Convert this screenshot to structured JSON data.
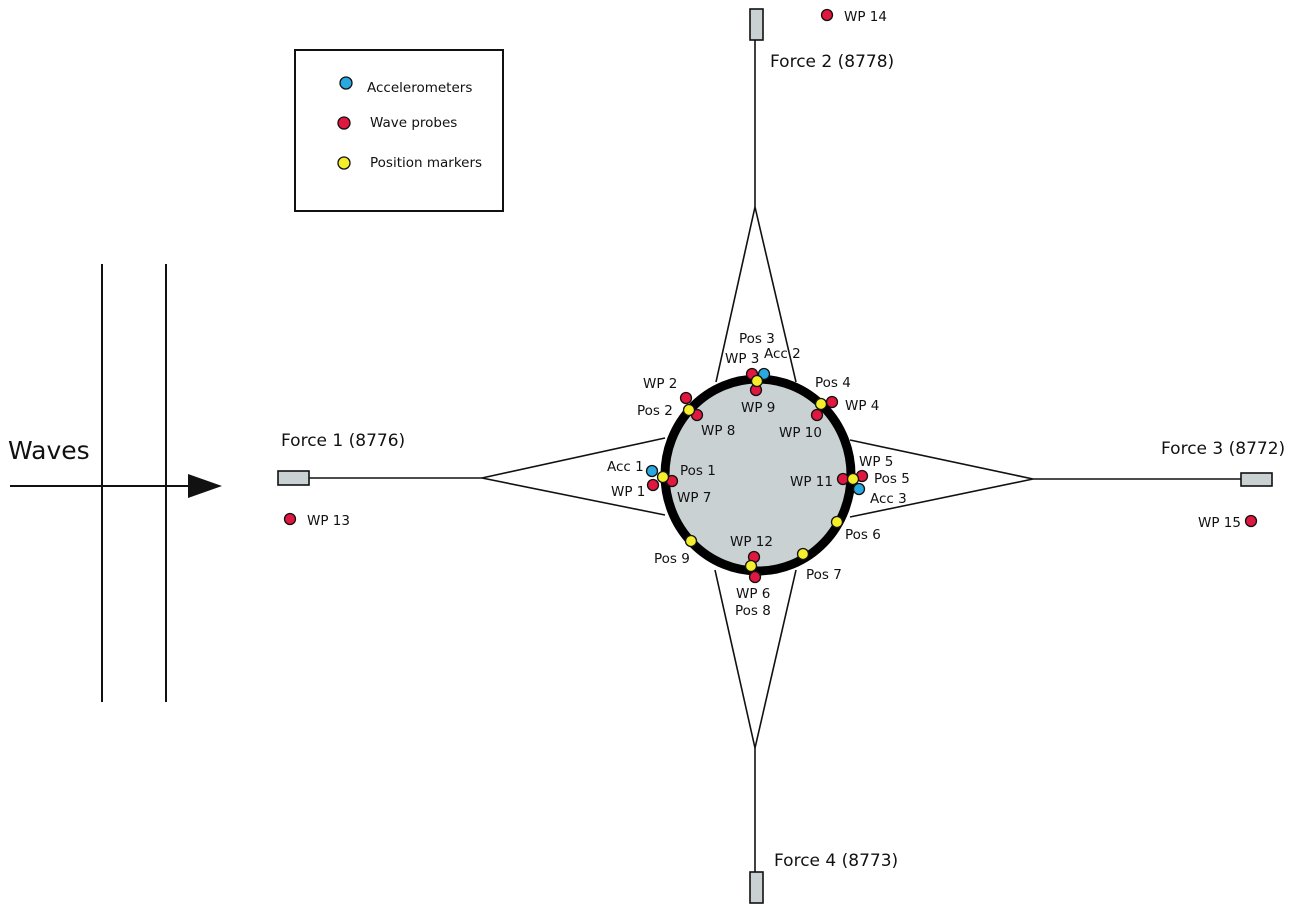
{
  "title": "",
  "waves_label": "Waves",
  "legend": {
    "accelerometers": "Accelerometers",
    "wave_probes": "Wave probes",
    "position_markers": "Position markers"
  },
  "colors": {
    "accelerometer": "#2aa8e0",
    "wave_probe": "#e0173f",
    "position_marker": "#f5ee2a",
    "buoy_fill": "#c9d1d3",
    "buoy_ring": "#000000",
    "anchor_fill": "#c9d1d3"
  },
  "forces": {
    "f1": "Force 1 (8776)",
    "f2": "Force 2 (8778)",
    "f3": "Force 3 (8772)",
    "f4": "Force 4 (8773)"
  },
  "labels": {
    "wp1": "WP 1",
    "wp2": "WP 2",
    "wp3": "WP 3",
    "wp4": "WP 4",
    "wp5": "WP 5",
    "wp6": "WP 6",
    "wp7": "WP 7",
    "wp8": "WP 8",
    "wp9": "WP 9",
    "wp10": "WP 10",
    "wp11": "WP 11",
    "wp12": "WP 12",
    "wp13": "WP 13",
    "wp14": "WP 14",
    "wp15": "WP 15",
    "pos1": "Pos 1",
    "pos2": "Pos 2",
    "pos3": "Pos 3",
    "pos4": "Pos 4",
    "pos5": "Pos 5",
    "pos6": "Pos 6",
    "pos7": "Pos 7",
    "pos8": "Pos 8",
    "pos9": "Pos 9",
    "acc1": "Acc 1",
    "acc2": "Acc 2",
    "acc3": "Acc 3"
  }
}
